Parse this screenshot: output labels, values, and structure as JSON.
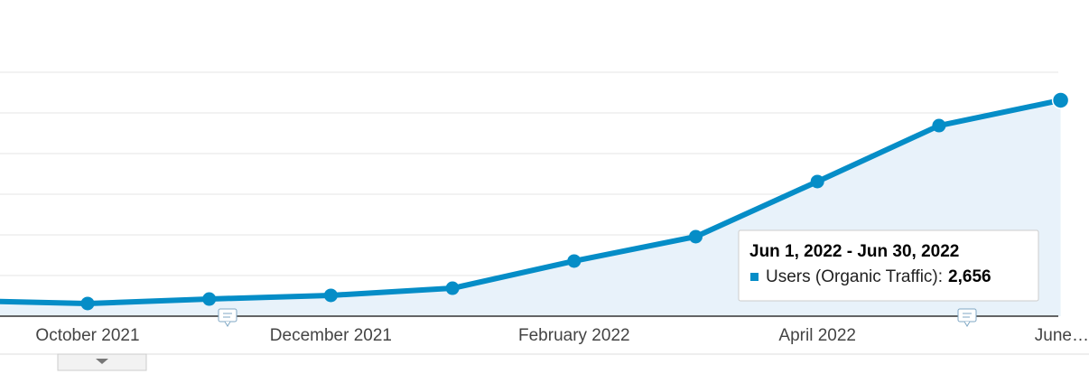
{
  "chart_data": {
    "type": "line",
    "categories": [
      null,
      "October 2021",
      null,
      "December 2021",
      null,
      "February 2022",
      null,
      "April 2022",
      null,
      "June…"
    ],
    "series": [
      {
        "color": "#058dc7",
        "values": [
          190,
          156,
          211,
          256,
          344,
          678,
          978,
          1656,
          2344,
          2656
        ]
      }
    ],
    "ylim": [
      0,
      3000
    ],
    "yticks": [
      0,
      500,
      1000,
      1500,
      2000,
      2500,
      3000
    ],
    "grid": true,
    "tooltip": {
      "title": "Jun 1, 2022 - Jun 30, 2022",
      "label": "Users (Organic Traffic):",
      "index": 9,
      "value_label": "2,656"
    }
  }
}
